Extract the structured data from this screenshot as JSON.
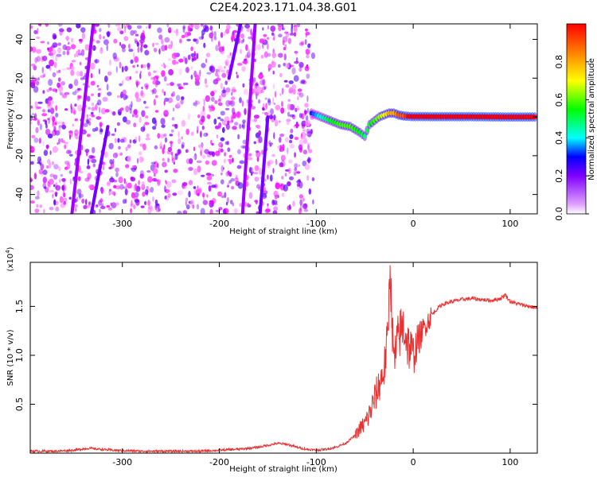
{
  "figure_title": "C2E4.2023.171.04.38.G01",
  "chart_data": [
    {
      "type": "heatmap",
      "title": "C2E4.2023.171.04.38.G01",
      "xlabel": "Height of straight line (km)",
      "ylabel": "Frequency (Hz)",
      "xlim": [
        -395,
        128
      ],
      "ylim": [
        -50,
        48
      ],
      "xticks": [
        -300,
        -200,
        -100,
        0,
        100
      ],
      "yticks": [
        -40,
        -20,
        0,
        20,
        40
      ],
      "colorbar": {
        "label": "Normalized spectral amplitude",
        "range": [
          0,
          1
        ],
        "ticks": [
          0.0,
          0.2,
          0.4,
          0.6,
          0.8
        ],
        "colormap": [
          "#ffffff",
          "#ff00ff",
          "#8000ff",
          "#0000ff",
          "#00ffff",
          "#00ff00",
          "#ffff00",
          "#ff0000"
        ]
      },
      "noise_region": {
        "x": [
          -395,
          -103
        ],
        "amplitude_range": [
          0.05,
          0.35
        ]
      },
      "streaks": [
        {
          "x": [
            -352,
            -330
          ],
          "y": [
            -50,
            48
          ],
          "amplitude": 0.25
        },
        {
          "x": [
            -332,
            -315
          ],
          "y": [
            -50,
            -5
          ],
          "amplitude": 0.3
        },
        {
          "x": [
            -190,
            -178
          ],
          "y": [
            20,
            48
          ],
          "amplitude": 0.3
        },
        {
          "x": [
            -176,
            -163
          ],
          "y": [
            -50,
            48
          ],
          "amplitude": 0.25
        },
        {
          "x": [
            -158,
            -150
          ],
          "y": [
            -50,
            0
          ],
          "amplitude": 0.3
        }
      ],
      "signal_track": {
        "x": [
          -105,
          -95,
          -85,
          -75,
          -65,
          -55,
          -50,
          -45,
          -40,
          -35,
          -30,
          -25,
          -20,
          -15,
          -10,
          -5,
          0,
          10,
          30,
          60,
          90,
          128
        ],
        "y": [
          2,
          0,
          -2,
          -4,
          -5,
          -8,
          -10,
          -4,
          -2,
          0,
          1,
          2,
          2,
          1,
          0.5,
          0.3,
          0.2,
          0.2,
          0.1,
          0.1,
          0,
          0
        ],
        "amplitude": [
          0.45,
          0.6,
          0.7,
          0.75,
          0.75,
          0.7,
          0.65,
          0.7,
          0.75,
          0.8,
          0.85,
          0.9,
          0.9,
          0.95,
          0.95,
          1.0,
          1.0,
          1.0,
          1.0,
          1.0,
          1.0,
          1.0
        ]
      }
    },
    {
      "type": "line",
      "xlabel": "Height of straight line (km)",
      "ylabel": "SNR (10 * v/v)",
      "y_scale_label": "(x10",
      "y_scale_exponent": "4",
      "y_scale_suffix": ")",
      "xlim": [
        -395,
        128
      ],
      "ylim": [
        0,
        1.95
      ],
      "xticks": [
        -300,
        -200,
        -100,
        0,
        100
      ],
      "yticks": [
        0.5,
        1.0,
        1.5
      ],
      "ytick_labels": [
        "0.5",
        "1.0",
        "1.5"
      ],
      "series": [
        {
          "color": "#e83232",
          "x": [
            -395,
            -370,
            -350,
            -335,
            -310,
            -280,
            -250,
            -220,
            -200,
            -180,
            -160,
            -150,
            -140,
            -130,
            -120,
            -110,
            -100,
            -90,
            -80,
            -70,
            -60,
            -55,
            -50,
            -45,
            -40,
            -35,
            -30,
            -26,
            -24,
            -20,
            -15,
            -10,
            -5,
            0,
            5,
            10,
            15,
            20,
            25,
            30,
            40,
            50,
            60,
            70,
            80,
            90,
            95,
            100,
            110,
            120,
            128
          ],
          "y": [
            0.02,
            0.02,
            0.03,
            0.05,
            0.03,
            0.02,
            0.02,
            0.02,
            0.03,
            0.04,
            0.06,
            0.08,
            0.1,
            0.09,
            0.06,
            0.04,
            0.03,
            0.04,
            0.06,
            0.1,
            0.18,
            0.25,
            0.3,
            0.4,
            0.55,
            0.7,
            0.85,
            1.2,
            1.95,
            0.9,
            1.2,
            1.3,
            1.1,
            1.0,
            1.15,
            1.25,
            1.35,
            1.42,
            1.48,
            1.52,
            1.55,
            1.57,
            1.58,
            1.57,
            1.56,
            1.58,
            1.62,
            1.55,
            1.52,
            1.5,
            1.48
          ]
        }
      ]
    }
  ]
}
